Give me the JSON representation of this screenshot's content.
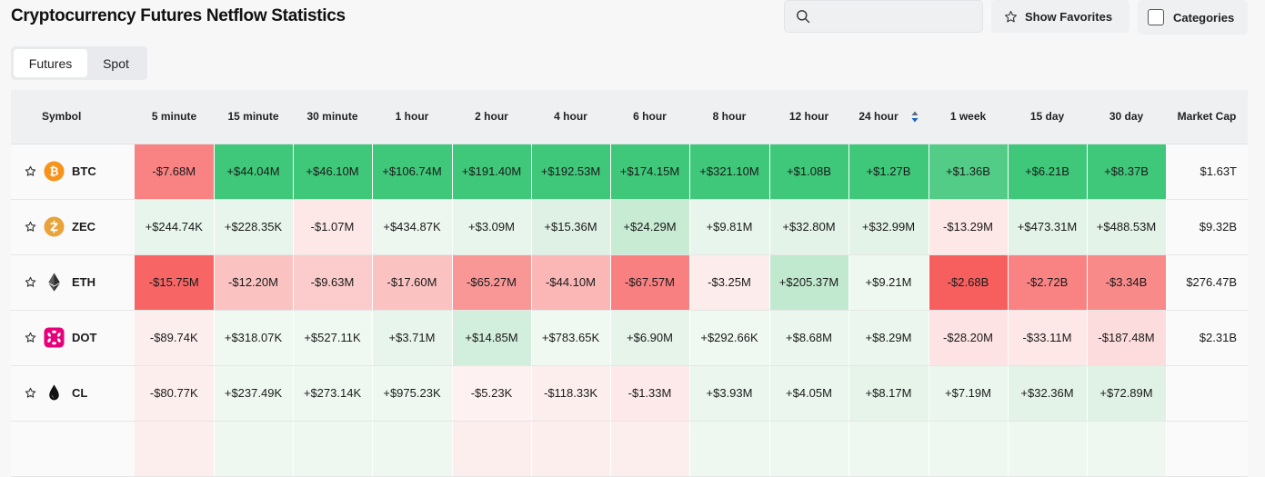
{
  "page_title": "Cryptocurrency Futures Netflow Statistics",
  "search": {
    "placeholder": "",
    "value": ""
  },
  "show_favorites_label": "Show Favorites",
  "categories_label": "Categories",
  "tabs": [
    {
      "label": "Futures",
      "active": true
    },
    {
      "label": "Spot",
      "active": false
    }
  ],
  "columns": [
    "Symbol",
    "5 minute",
    "15 minute",
    "30 minute",
    "1 hour",
    "2 hour",
    "4 hour",
    "6 hour",
    "8 hour",
    "12 hour",
    "24 hour",
    "1 week",
    "15 day",
    "30 day",
    "Market Cap"
  ],
  "sorted_column": "24 hour",
  "rows": [
    {
      "symbol": "BTC",
      "icon": "bitcoin-icon",
      "icon_color": "#f7931a",
      "values": [
        "-$7.68M",
        "+$44.04M",
        "+$46.10M",
        "+$106.74M",
        "+$191.40M",
        "+$192.53M",
        "+$174.15M",
        "+$321.10M",
        "+$1.08B",
        "+$1.27B",
        "+$1.36B",
        "+$6.21B",
        "+$8.37B"
      ],
      "colors": [
        "#f98383",
        "#3fc77a",
        "#3fc77a",
        "#3fc77a",
        "#3fc77a",
        "#3fc77a",
        "#3fc77a",
        "#3fc77a",
        "#3fc77a",
        "#3fc77a",
        "#52cc87",
        "#3fc77a",
        "#3fc77a"
      ],
      "market_cap": "$1.63T"
    },
    {
      "symbol": "ZEC",
      "icon": "zcash-icon",
      "icon_color": "#e8a33b",
      "values": [
        "+$244.74K",
        "+$228.35K",
        "-$1.07M",
        "+$434.87K",
        "+$3.09M",
        "+$15.36M",
        "+$24.29M",
        "+$9.81M",
        "+$32.80M",
        "+$32.99M",
        "-$13.29M",
        "+$473.31M",
        "+$488.53M"
      ],
      "colors": [
        "#e8f5ec",
        "#e8f5ec",
        "#fde7e7",
        "#edf7f0",
        "#e8f5ec",
        "#dff1e5",
        "#c8ebd4",
        "#e8f5ec",
        "#e3f3e8",
        "#e3f3e8",
        "#fde7e7",
        "#e3f3e8",
        "#e3f3e8"
      ],
      "market_cap": "$9.32B"
    },
    {
      "symbol": "ETH",
      "icon": "ethereum-icon",
      "icon_color": "#444444",
      "values": [
        "-$15.75M",
        "-$12.20M",
        "-$9.63M",
        "-$17.60M",
        "-$65.27M",
        "-$44.10M",
        "-$67.57M",
        "-$3.25M",
        "+$205.37M",
        "+$9.21M",
        "-$2.68B",
        "-$2.72B",
        "-$3.34B"
      ],
      "colors": [
        "#f86565",
        "#fbc2c2",
        "#fccccc",
        "#fbc2c2",
        "#f99797",
        "#fbb6b6",
        "#f98080",
        "#fdecec",
        "#c1e9cf",
        "#eef8f1",
        "#f75f5f",
        "#f98383",
        "#f98a8a"
      ],
      "market_cap": "$276.47B"
    },
    {
      "symbol": "DOT",
      "icon": "polkadot-icon",
      "icon_color": "#e6007a",
      "values": [
        "-$89.74K",
        "+$318.07K",
        "+$527.11K",
        "+$3.71M",
        "+$14.85M",
        "+$783.65K",
        "+$6.90M",
        "+$292.66K",
        "+$8.68M",
        "+$8.29M",
        "-$28.20M",
        "-$33.11M",
        "-$187.48M"
      ],
      "colors": [
        "#fdeeee",
        "#f0f8f2",
        "#f0f8f2",
        "#e8f5ec",
        "#d2eedc",
        "#f0f8f2",
        "#e6f4ea",
        "#f0f8f2",
        "#eaf6ee",
        "#eaf6ee",
        "#fde3e3",
        "#fde7e7",
        "#fcdcdc"
      ],
      "market_cap": "$2.31B"
    },
    {
      "symbol": "CL",
      "icon": "oil-drop-icon",
      "icon_color": "#111111",
      "values": [
        "-$80.77K",
        "+$237.49K",
        "+$273.14K",
        "+$975.23K",
        "-$5.23K",
        "-$118.33K",
        "-$1.33M",
        "+$3.93M",
        "+$4.05M",
        "+$8.17M",
        "+$7.19M",
        "+$32.36M",
        "+$72.89M"
      ],
      "colors": [
        "#fdeeee",
        "#eef8f1",
        "#eef8f1",
        "#eef8f1",
        "#fdf1f1",
        "#fdeeee",
        "#fde9e9",
        "#eaf6ee",
        "#eaf6ee",
        "#e6f4ea",
        "#eaf6ee",
        "#e3f3e8",
        "#e0f2e6"
      ],
      "market_cap": ""
    },
    {
      "symbol": "",
      "icon": "",
      "icon_color": "",
      "values": [
        "",
        "",
        "",
        "",
        "",
        "",
        "",
        "",
        "",
        "",
        "",
        "",
        ""
      ],
      "colors": [
        "#fdeeee",
        "#eef8f1",
        "#eef8f1",
        "#eef8f1",
        "#fdeeee",
        "#fdeeee",
        "#fdeeee",
        "#eef8f1",
        "#eef8f1",
        "#eef8f1",
        "#eef8f1",
        "#eef8f1",
        "#eef8f1"
      ],
      "market_cap": ""
    }
  ]
}
